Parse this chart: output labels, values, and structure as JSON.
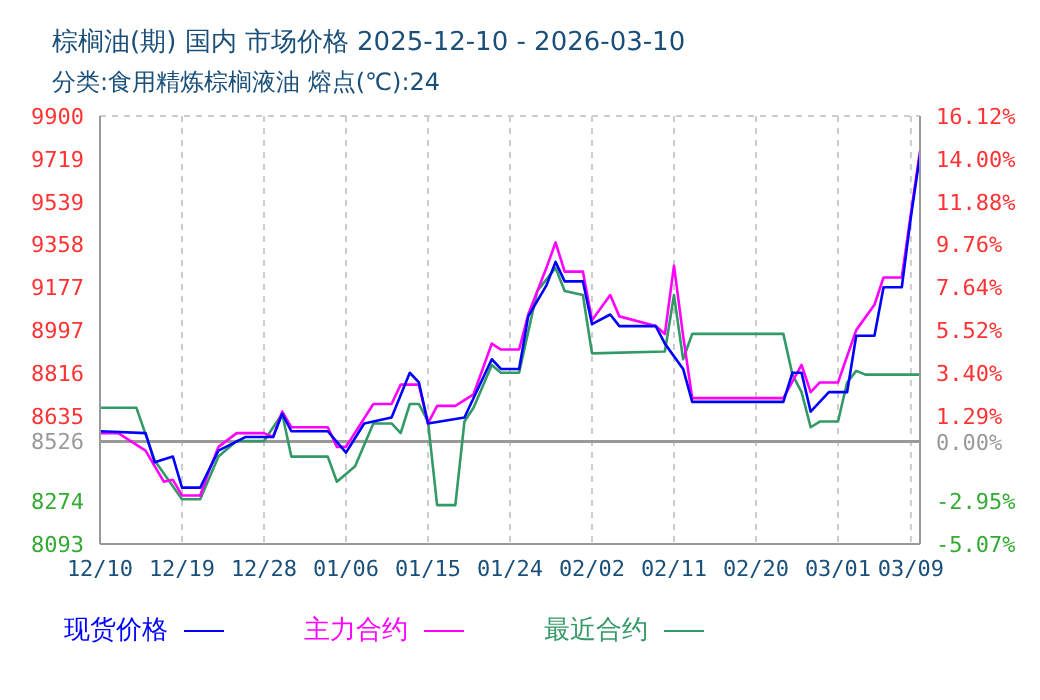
{
  "chart_data": {
    "type": "line",
    "title": "棕榈油(期) 国内 市场价格 2025-12-10 - 2026-03-10",
    "subtitle": "分类:食用精炼棕榈液油 熔点(℃):24",
    "xlim": [
      "2025-12-10",
      "2026-03-10"
    ],
    "xticks": [
      {
        "value": "2025-12-10",
        "label": "12/10"
      },
      {
        "value": "2025-12-19",
        "label": "12/19"
      },
      {
        "value": "2025-12-28",
        "label": "12/28"
      },
      {
        "value": "2026-01-06",
        "label": "01/06"
      },
      {
        "value": "2026-01-15",
        "label": "01/15"
      },
      {
        "value": "2026-01-24",
        "label": "01/24"
      },
      {
        "value": "2026-02-02",
        "label": "02/02"
      },
      {
        "value": "2026-02-11",
        "label": "02/11"
      },
      {
        "value": "2026-02-20",
        "label": "02/20"
      },
      {
        "value": "2026-03-01",
        "label": "03/01"
      },
      {
        "value": "2026-03-09",
        "label": "03/09"
      }
    ],
    "ylim": [
      8093,
      9900
    ],
    "yticks": [
      8093,
      8274,
      8526,
      8635,
      8816,
      8997,
      9177,
      9358,
      9539,
      9719,
      9900
    ],
    "y2lim": [
      -5.07,
      16.12
    ],
    "y2ticks": [
      {
        "value": -5.07,
        "label": "-5.07%"
      },
      {
        "value": -2.95,
        "label": "-2.95%"
      },
      {
        "value": 0,
        "label": "0.00%"
      },
      {
        "value": 1.29,
        "label": "1.29%"
      },
      {
        "value": 3.4,
        "label": "3.40%"
      },
      {
        "value": 5.52,
        "label": "5.52%"
      },
      {
        "value": 7.64,
        "label": "7.64%"
      },
      {
        "value": 9.76,
        "label": "9.76%"
      },
      {
        "value": 11.88,
        "label": "11.88%"
      },
      {
        "value": 14,
        "label": "14.00%"
      },
      {
        "value": 16.12,
        "label": "16.12%"
      }
    ],
    "ref_lines": [
      {
        "axis": "y",
        "value": 8526,
        "color": "#999999"
      }
    ],
    "grid": true,
    "legend": "bottom",
    "marker": "none",
    "line_style": "solid",
    "series": [
      {
        "name": "现货价格",
        "color": "#0000ff",
        "x": [
          "2025-12-10",
          "2025-12-15",
          "2025-12-16",
          "2025-12-18",
          "2025-12-19",
          "2025-12-21",
          "2025-12-23",
          "2025-12-26",
          "2025-12-29",
          "2025-12-30",
          "2025-12-31",
          "2026-01-04",
          "2026-01-06",
          "2026-01-08",
          "2026-01-11",
          "2026-01-13",
          "2026-01-14",
          "2026-01-15",
          "2026-01-19",
          "2026-01-22",
          "2026-01-23",
          "2026-01-25",
          "2026-01-26",
          "2026-01-28",
          "2026-01-29",
          "2026-01-30",
          "2026-02-01",
          "2026-02-02",
          "2026-02-04",
          "2026-02-05",
          "2026-02-09",
          "2026-02-10",
          "2026-02-12",
          "2026-02-13",
          "2026-02-23",
          "2026-02-24",
          "2026-02-25",
          "2026-02-26",
          "2026-02-28",
          "2026-03-02",
          "2026-03-03",
          "2026-03-05",
          "2026-03-06",
          "2026-03-08",
          "2026-03-09",
          "2026-03-10"
        ],
        "values": [
          8569,
          8561,
          8438,
          8462,
          8331,
          8331,
          8487,
          8545,
          8545,
          8643,
          8569,
          8569,
          8479,
          8602,
          8627,
          8816,
          8775,
          8602,
          8627,
          8873,
          8832,
          8832,
          9054,
          9185,
          9284,
          9202,
          9202,
          9021,
          9062,
          9013,
          9013,
          8939,
          8832,
          8693,
          8693,
          8816,
          8816,
          8652,
          8734,
          8734,
          8972,
          8972,
          9177,
          9177,
          9473,
          9736
        ]
      },
      {
        "name": "主力合约",
        "color": "#ff00ff",
        "x": [
          "2025-12-10",
          "2025-12-12",
          "2025-12-15",
          "2025-12-17",
          "2025-12-18",
          "2025-12-19",
          "2025-12-21",
          "2025-12-22",
          "2025-12-23",
          "2025-12-25",
          "2025-12-28",
          "2025-12-29",
          "2025-12-30",
          "2025-12-31",
          "2026-01-04",
          "2026-01-05",
          "2026-01-06",
          "2026-01-09",
          "2026-01-11",
          "2026-01-12",
          "2026-01-14",
          "2026-01-15",
          "2026-01-16",
          "2026-01-18",
          "2026-01-20",
          "2026-01-22",
          "2026-01-23",
          "2026-01-25",
          "2026-01-26",
          "2026-01-28",
          "2026-01-29",
          "2026-01-30",
          "2026-02-01",
          "2026-02-02",
          "2026-02-04",
          "2026-02-05",
          "2026-02-09",
          "2026-02-10",
          "2026-02-11",
          "2026-02-12",
          "2026-02-13",
          "2026-02-23",
          "2026-02-25",
          "2026-02-26",
          "2026-02-27",
          "2026-03-01",
          "2026-03-03",
          "2026-03-05",
          "2026-03-06",
          "2026-03-08",
          "2026-03-09",
          "2026-03-10"
        ],
        "values": [
          8561,
          8561,
          8487,
          8356,
          8364,
          8298,
          8298,
          8405,
          8503,
          8561,
          8561,
          8545,
          8652,
          8586,
          8586,
          8503,
          8503,
          8684,
          8684,
          8766,
          8766,
          8602,
          8676,
          8676,
          8725,
          8939,
          8914,
          8914,
          9062,
          9259,
          9366,
          9243,
          9243,
          9038,
          9144,
          9054,
          9013,
          8980,
          9268,
          8972,
          8709,
          8709,
          8849,
          8734,
          8775,
          8775,
          8996,
          9103,
          9218,
          9218,
          9489,
          9752
        ]
      },
      {
        "name": "最近合约",
        "color": "#339966",
        "x": [
          "2025-12-10",
          "2025-12-14",
          "2025-12-16",
          "2025-12-19",
          "2025-12-21",
          "2025-12-23",
          "2025-12-25",
          "2025-12-28",
          "2025-12-30",
          "2025-12-31",
          "2026-01-04",
          "2026-01-05",
          "2026-01-07",
          "2026-01-09",
          "2026-01-11",
          "2026-01-12",
          "2026-01-13",
          "2026-01-14",
          "2026-01-15",
          "2026-01-16",
          "2026-01-18",
          "2026-01-19",
          "2026-01-20",
          "2026-01-22",
          "2026-01-23",
          "2026-01-25",
          "2026-01-27",
          "2026-01-29",
          "2026-01-30",
          "2026-02-01",
          "2026-02-02",
          "2026-02-10",
          "2026-02-11",
          "2026-02-12",
          "2026-02-13",
          "2026-02-23",
          "2026-02-24",
          "2026-02-25",
          "2026-02-26",
          "2026-02-27",
          "2026-03-01",
          "2026-03-02",
          "2026-03-03",
          "2026-03-04",
          "2026-03-10"
        ],
        "values": [
          8668,
          8668,
          8446,
          8282,
          8282,
          8462,
          8528,
          8528,
          8643,
          8462,
          8462,
          8356,
          8421,
          8602,
          8602,
          8561,
          8684,
          8684,
          8610,
          8257,
          8257,
          8610,
          8668,
          8849,
          8816,
          8816,
          9161,
          9259,
          9161,
          9144,
          8898,
          8906,
          9144,
          8873,
          8980,
          8980,
          8808,
          8734,
          8586,
          8610,
          8610,
          8775,
          8824,
          8808,
          8808
        ]
      }
    ]
  }
}
